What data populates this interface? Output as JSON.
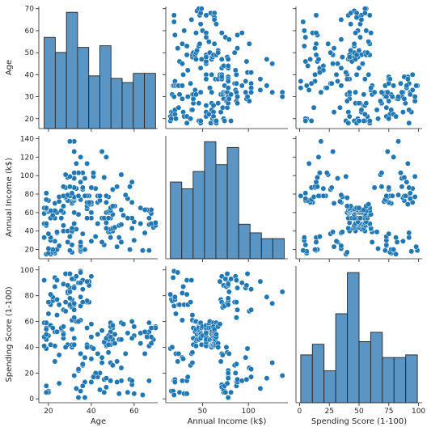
{
  "chart_data": {
    "type": "scatter",
    "title": "",
    "variables": [
      {
        "label": "Age",
        "ticks": [
          20,
          30,
          40,
          50,
          60,
          70
        ],
        "diag_ticks": [
          20,
          40,
          60
        ],
        "lim": [
          15.5,
          71
        ],
        "bins": [
          [
            18,
            23.2,
            54.5
          ],
          [
            23.2,
            28.4,
            45.5
          ],
          [
            28.4,
            33.6,
            69.5
          ],
          [
            33.6,
            38.8,
            48.5
          ],
          [
            38.8,
            44,
            31.5
          ],
          [
            44,
            49.2,
            49.5
          ],
          [
            49.2,
            54.4,
            30
          ],
          [
            54.4,
            59.6,
            27.5
          ],
          [
            59.6,
            64.8,
            33
          ],
          [
            64.8,
            70,
            33
          ]
        ]
      },
      {
        "label": "Annual Income (k$)",
        "ticks": [
          20,
          40,
          60,
          80,
          100,
          120,
          140
        ],
        "diag_ticks": [
          50,
          100
        ],
        "lim": [
          10,
          143
        ],
        "bins": [
          [
            15,
            27.4,
            80
          ],
          [
            27.4,
            39.8,
            73
          ],
          [
            39.8,
            52.2,
            91
          ],
          [
            52.2,
            64.6,
            122
          ],
          [
            64.6,
            77,
            98
          ],
          [
            77,
            89.4,
            116
          ],
          [
            89.4,
            101.8,
            36
          ],
          [
            101.8,
            114.2,
            27
          ],
          [
            114.2,
            126.6,
            21
          ],
          [
            126.6,
            139,
            21
          ]
        ]
      },
      {
        "label": "Spending Score (1-100)",
        "ticks": [
          0,
          20,
          40,
          60,
          80,
          100
        ],
        "diag_ticks": [
          0,
          25,
          50,
          75,
          100
        ],
        "lim": [
          -3,
          103
        ],
        "bins": [
          [
            1,
            10.8,
            36
          ],
          [
            10.8,
            20.6,
            44
          ],
          [
            20.6,
            30.4,
            24
          ],
          [
            30.4,
            40.2,
            67
          ],
          [
            40.2,
            50,
            98
          ],
          [
            50,
            59.8,
            46
          ],
          [
            59.8,
            69.6,
            53
          ],
          [
            69.6,
            79.4,
            34
          ],
          [
            79.4,
            89.2,
            34
          ],
          [
            89.2,
            99,
            36
          ]
        ]
      }
    ],
    "points": [
      [
        19,
        15,
        39
      ],
      [
        21,
        15,
        81
      ],
      [
        20,
        16,
        6
      ],
      [
        23,
        16,
        77
      ],
      [
        31,
        17,
        40
      ],
      [
        22,
        17,
        76
      ],
      [
        35,
        18,
        6
      ],
      [
        23,
        18,
        94
      ],
      [
        64,
        19,
        3
      ],
      [
        30,
        19,
        72
      ],
      [
        67,
        19,
        14
      ],
      [
        35,
        19,
        99
      ],
      [
        58,
        20,
        15
      ],
      [
        24,
        20,
        77
      ],
      [
        37,
        20,
        13
      ],
      [
        22,
        20,
        79
      ],
      [
        35,
        21,
        35
      ],
      [
        20,
        21,
        66
      ],
      [
        52,
        23,
        29
      ],
      [
        35,
        23,
        98
      ],
      [
        35,
        24,
        35
      ],
      [
        25,
        24,
        73
      ],
      [
        46,
        25,
        5
      ],
      [
        31,
        25,
        73
      ],
      [
        54,
        28,
        14
      ],
      [
        29,
        28,
        82
      ],
      [
        45,
        28,
        32
      ],
      [
        35,
        28,
        61
      ],
      [
        40,
        29,
        31
      ],
      [
        23,
        29,
        87
      ],
      [
        60,
        30,
        4
      ],
      [
        21,
        30,
        73
      ],
      [
        53,
        33,
        4
      ],
      [
        18,
        33,
        92
      ],
      [
        49,
        33,
        14
      ],
      [
        21,
        33,
        81
      ],
      [
        42,
        34,
        17
      ],
      [
        30,
        34,
        73
      ],
      [
        36,
        37,
        26
      ],
      [
        20,
        37,
        75
      ],
      [
        65,
        38,
        35
      ],
      [
        24,
        38,
        92
      ],
      [
        48,
        39,
        36
      ],
      [
        31,
        39,
        61
      ],
      [
        49,
        39,
        28
      ],
      [
        24,
        39,
        65
      ],
      [
        50,
        40,
        55
      ],
      [
        27,
        40,
        47
      ],
      [
        29,
        40,
        42
      ],
      [
        31,
        40,
        42
      ],
      [
        49,
        42,
        52
      ],
      [
        33,
        42,
        60
      ],
      [
        31,
        43,
        54
      ],
      [
        59,
        43,
        60
      ],
      [
        50,
        43,
        45
      ],
      [
        47,
        43,
        41
      ],
      [
        51,
        44,
        50
      ],
      [
        69,
        44,
        46
      ],
      [
        27,
        46,
        51
      ],
      [
        53,
        46,
        46
      ],
      [
        70,
        46,
        56
      ],
      [
        19,
        46,
        55
      ],
      [
        67,
        47,
        52
      ],
      [
        54,
        47,
        59
      ],
      [
        63,
        48,
        51
      ],
      [
        18,
        48,
        59
      ],
      [
        43,
        48,
        50
      ],
      [
        68,
        48,
        48
      ],
      [
        19,
        48,
        59
      ],
      [
        32,
        48,
        47
      ],
      [
        70,
        49,
        55
      ],
      [
        47,
        49,
        42
      ],
      [
        60,
        50,
        49
      ],
      [
        60,
        50,
        56
      ],
      [
        59,
        54,
        47
      ],
      [
        26,
        54,
        54
      ],
      [
        45,
        54,
        53
      ],
      [
        40,
        54,
        48
      ],
      [
        23,
        54,
        52
      ],
      [
        49,
        54,
        42
      ],
      [
        57,
        54,
        51
      ],
      [
        38,
        54,
        55
      ],
      [
        67,
        54,
        41
      ],
      [
        46,
        54,
        44
      ],
      [
        21,
        54,
        57
      ],
      [
        48,
        54,
        46
      ],
      [
        55,
        57,
        58
      ],
      [
        22,
        57,
        55
      ],
      [
        34,
        58,
        60
      ],
      [
        50,
        58,
        46
      ],
      [
        68,
        59,
        55
      ],
      [
        18,
        59,
        41
      ],
      [
        48,
        60,
        49
      ],
      [
        40,
        60,
        40
      ],
      [
        32,
        60,
        42
      ],
      [
        24,
        60,
        52
      ],
      [
        47,
        60,
        47
      ],
      [
        27,
        60,
        50
      ],
      [
        48,
        61,
        42
      ],
      [
        20,
        61,
        49
      ],
      [
        23,
        62,
        41
      ],
      [
        49,
        62,
        48
      ],
      [
        67,
        62,
        59
      ],
      [
        26,
        62,
        55
      ],
      [
        49,
        62,
        56
      ],
      [
        21,
        62,
        42
      ],
      [
        66,
        63,
        50
      ],
      [
        54,
        63,
        46
      ],
      [
        68,
        63,
        43
      ],
      [
        66,
        63,
        48
      ],
      [
        65,
        63,
        52
      ],
      [
        19,
        63,
        54
      ],
      [
        38,
        64,
        42
      ],
      [
        19,
        64,
        46
      ],
      [
        18,
        65,
        48
      ],
      [
        19,
        65,
        50
      ],
      [
        63,
        65,
        43
      ],
      [
        49,
        65,
        59
      ],
      [
        51,
        67,
        43
      ],
      [
        50,
        67,
        57
      ],
      [
        27,
        67,
        56
      ],
      [
        38,
        67,
        40
      ],
      [
        40,
        69,
        58
      ],
      [
        39,
        69,
        91
      ],
      [
        23,
        70,
        29
      ],
      [
        31,
        70,
        77
      ],
      [
        43,
        71,
        35
      ],
      [
        40,
        71,
        95
      ],
      [
        59,
        71,
        11
      ],
      [
        38,
        71,
        75
      ],
      [
        47,
        71,
        9
      ],
      [
        39,
        71,
        75
      ],
      [
        25,
        72,
        34
      ],
      [
        31,
        72,
        71
      ],
      [
        20,
        73,
        5
      ],
      [
        29,
        73,
        88
      ],
      [
        44,
        73,
        7
      ],
      [
        32,
        73,
        73
      ],
      [
        19,
        74,
        10
      ],
      [
        35,
        74,
        72
      ],
      [
        57,
        75,
        5
      ],
      [
        32,
        75,
        93
      ],
      [
        28,
        76,
        40
      ],
      [
        32,
        76,
        87
      ],
      [
        25,
        77,
        12
      ],
      [
        28,
        77,
        97
      ],
      [
        48,
        77,
        36
      ],
      [
        32,
        77,
        74
      ],
      [
        34,
        78,
        22
      ],
      [
        34,
        78,
        90
      ],
      [
        43,
        78,
        17
      ],
      [
        39,
        78,
        88
      ],
      [
        44,
        78,
        20
      ],
      [
        38,
        78,
        76
      ],
      [
        47,
        78,
        16
      ],
      [
        27,
        78,
        89
      ],
      [
        37,
        78,
        1
      ],
      [
        30,
        78,
        78
      ],
      [
        34,
        78,
        1
      ],
      [
        30,
        78,
        73
      ],
      [
        56,
        79,
        35
      ],
      [
        29,
        79,
        83
      ],
      [
        19,
        81,
        5
      ],
      [
        31,
        81,
        93
      ],
      [
        50,
        85,
        26
      ],
      [
        36,
        85,
        75
      ],
      [
        42,
        86,
        20
      ],
      [
        33,
        86,
        95
      ],
      [
        36,
        87,
        27
      ],
      [
        32,
        87,
        63
      ],
      [
        40,
        87,
        13
      ],
      [
        28,
        87,
        75
      ],
      [
        36,
        87,
        10
      ],
      [
        36,
        87,
        92
      ],
      [
        52,
        88,
        13
      ],
      [
        30,
        88,
        86
      ],
      [
        58,
        88,
        15
      ],
      [
        27,
        88,
        69
      ],
      [
        59,
        93,
        14
      ],
      [
        35,
        93,
        90
      ],
      [
        37,
        97,
        32
      ],
      [
        32,
        97,
        86
      ],
      [
        46,
        98,
        15
      ],
      [
        29,
        98,
        88
      ],
      [
        41,
        99,
        39
      ],
      [
        30,
        99,
        97
      ],
      [
        54,
        101,
        24
      ],
      [
        28,
        101,
        68
      ],
      [
        41,
        103,
        17
      ],
      [
        36,
        103,
        85
      ],
      [
        34,
        103,
        23
      ],
      [
        32,
        103,
        69
      ],
      [
        33,
        113,
        8
      ],
      [
        38,
        113,
        91
      ],
      [
        47,
        120,
        16
      ],
      [
        35,
        120,
        79
      ],
      [
        45,
        126,
        28
      ],
      [
        32,
        126,
        74
      ],
      [
        32,
        137,
        18
      ],
      [
        30,
        137,
        83
      ]
    ]
  }
}
